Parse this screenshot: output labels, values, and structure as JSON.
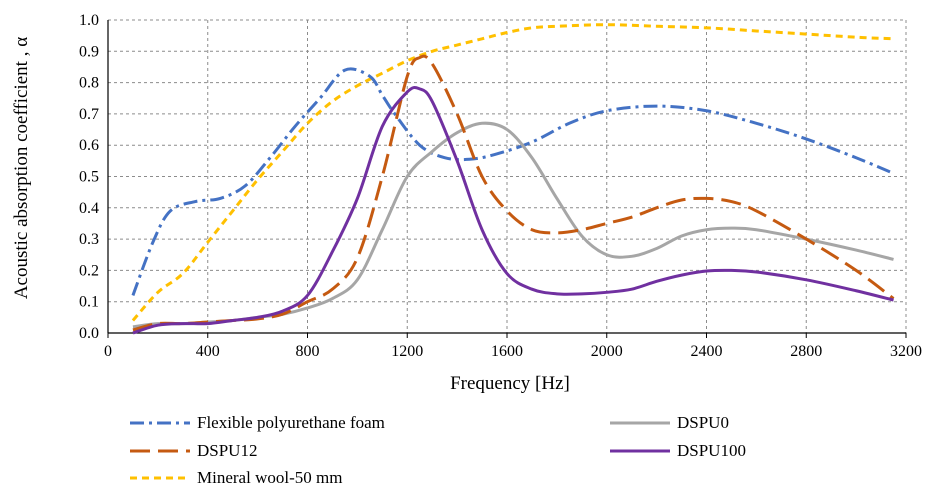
{
  "chart_data": {
    "type": "line",
    "xlabel": "Frequency [Hz]",
    "ylabel": "Acoustic absorption coefficient , α",
    "xlim": [
      0,
      3200
    ],
    "ylim": [
      0,
      1.0
    ],
    "x_ticks": [
      "0",
      "400",
      "800",
      "1200",
      "1600",
      "2000",
      "2400",
      "2800",
      "3200"
    ],
    "y_ticks": [
      "0.0",
      "0.1",
      "0.2",
      "0.3",
      "0.4",
      "0.5",
      "0.6",
      "0.7",
      "0.8",
      "0.9",
      "1.0"
    ],
    "grid": "dashed",
    "legend_position": "bottom",
    "series": [
      {
        "name": "Flexible polyurethane foam",
        "color": "#4472C4",
        "dash": "dash-dot",
        "points": [
          [
            100,
            0.12
          ],
          [
            180,
            0.29
          ],
          [
            250,
            0.39
          ],
          [
            350,
            0.42
          ],
          [
            450,
            0.43
          ],
          [
            550,
            0.47
          ],
          [
            650,
            0.56
          ],
          [
            750,
            0.66
          ],
          [
            850,
            0.75
          ],
          [
            950,
            0.84
          ],
          [
            1050,
            0.82
          ],
          [
            1100,
            0.76
          ],
          [
            1150,
            0.7
          ],
          [
            1250,
            0.6
          ],
          [
            1350,
            0.56
          ],
          [
            1450,
            0.555
          ],
          [
            1550,
            0.57
          ],
          [
            1700,
            0.61
          ],
          [
            1850,
            0.67
          ],
          [
            2000,
            0.71
          ],
          [
            2200,
            0.725
          ],
          [
            2400,
            0.71
          ],
          [
            2600,
            0.67
          ],
          [
            2800,
            0.62
          ],
          [
            3000,
            0.56
          ],
          [
            3150,
            0.51
          ]
        ]
      },
      {
        "name": "DSPU0",
        "color": "#A6A6A6",
        "dash": "solid",
        "points": [
          [
            100,
            0.02
          ],
          [
            200,
            0.03
          ],
          [
            300,
            0.03
          ],
          [
            400,
            0.035
          ],
          [
            500,
            0.04
          ],
          [
            600,
            0.05
          ],
          [
            700,
            0.06
          ],
          [
            800,
            0.08
          ],
          [
            900,
            0.11
          ],
          [
            1000,
            0.17
          ],
          [
            1100,
            0.33
          ],
          [
            1200,
            0.5
          ],
          [
            1300,
            0.58
          ],
          [
            1400,
            0.64
          ],
          [
            1500,
            0.67
          ],
          [
            1600,
            0.65
          ],
          [
            1700,
            0.56
          ],
          [
            1800,
            0.43
          ],
          [
            1900,
            0.31
          ],
          [
            2000,
            0.25
          ],
          [
            2100,
            0.245
          ],
          [
            2200,
            0.27
          ],
          [
            2300,
            0.31
          ],
          [
            2400,
            0.33
          ],
          [
            2500,
            0.335
          ],
          [
            2600,
            0.33
          ],
          [
            2800,
            0.3
          ],
          [
            3000,
            0.265
          ],
          [
            3150,
            0.235
          ]
        ]
      },
      {
        "name": "DSPU12",
        "color": "#C55A11",
        "dash": "long-dash",
        "points": [
          [
            100,
            0.01
          ],
          [
            200,
            0.03
          ],
          [
            300,
            0.03
          ],
          [
            400,
            0.035
          ],
          [
            500,
            0.04
          ],
          [
            600,
            0.045
          ],
          [
            700,
            0.06
          ],
          [
            800,
            0.1
          ],
          [
            900,
            0.14
          ],
          [
            1000,
            0.24
          ],
          [
            1100,
            0.5
          ],
          [
            1200,
            0.82
          ],
          [
            1250,
            0.88
          ],
          [
            1300,
            0.86
          ],
          [
            1400,
            0.7
          ],
          [
            1500,
            0.5
          ],
          [
            1600,
            0.39
          ],
          [
            1700,
            0.33
          ],
          [
            1800,
            0.32
          ],
          [
            1900,
            0.33
          ],
          [
            2000,
            0.35
          ],
          [
            2100,
            0.37
          ],
          [
            2200,
            0.4
          ],
          [
            2300,
            0.425
          ],
          [
            2400,
            0.43
          ],
          [
            2500,
            0.42
          ],
          [
            2600,
            0.39
          ],
          [
            2800,
            0.3
          ],
          [
            3000,
            0.2
          ],
          [
            3150,
            0.11
          ]
        ]
      },
      {
        "name": "DSPU100",
        "color": "#7030A0",
        "dash": "solid",
        "points": [
          [
            100,
            0.0
          ],
          [
            200,
            0.025
          ],
          [
            300,
            0.03
          ],
          [
            400,
            0.03
          ],
          [
            500,
            0.04
          ],
          [
            600,
            0.05
          ],
          [
            700,
            0.07
          ],
          [
            800,
            0.12
          ],
          [
            900,
            0.26
          ],
          [
            1000,
            0.43
          ],
          [
            1100,
            0.66
          ],
          [
            1200,
            0.77
          ],
          [
            1250,
            0.78
          ],
          [
            1300,
            0.74
          ],
          [
            1400,
            0.55
          ],
          [
            1500,
            0.33
          ],
          [
            1600,
            0.19
          ],
          [
            1700,
            0.14
          ],
          [
            1800,
            0.125
          ],
          [
            1900,
            0.125
          ],
          [
            2000,
            0.13
          ],
          [
            2100,
            0.14
          ],
          [
            2200,
            0.165
          ],
          [
            2300,
            0.185
          ],
          [
            2400,
            0.198
          ],
          [
            2500,
            0.2
          ],
          [
            2600,
            0.195
          ],
          [
            2800,
            0.17
          ],
          [
            3000,
            0.135
          ],
          [
            3150,
            0.105
          ]
        ]
      },
      {
        "name": "Mineral wool-50 mm",
        "color": "#FFC000",
        "dash": "short-dash",
        "points": [
          [
            100,
            0.04
          ],
          [
            200,
            0.13
          ],
          [
            300,
            0.19
          ],
          [
            400,
            0.29
          ],
          [
            500,
            0.39
          ],
          [
            600,
            0.49
          ],
          [
            700,
            0.58
          ],
          [
            800,
            0.67
          ],
          [
            900,
            0.74
          ],
          [
            1000,
            0.79
          ],
          [
            1100,
            0.83
          ],
          [
            1200,
            0.87
          ],
          [
            1300,
            0.9
          ],
          [
            1400,
            0.92
          ],
          [
            1500,
            0.94
          ],
          [
            1600,
            0.96
          ],
          [
            1700,
            0.975
          ],
          [
            1800,
            0.98
          ],
          [
            2000,
            0.985
          ],
          [
            2200,
            0.98
          ],
          [
            2400,
            0.975
          ],
          [
            2600,
            0.965
          ],
          [
            2800,
            0.955
          ],
          [
            3000,
            0.945
          ],
          [
            3150,
            0.94
          ]
        ]
      }
    ]
  }
}
